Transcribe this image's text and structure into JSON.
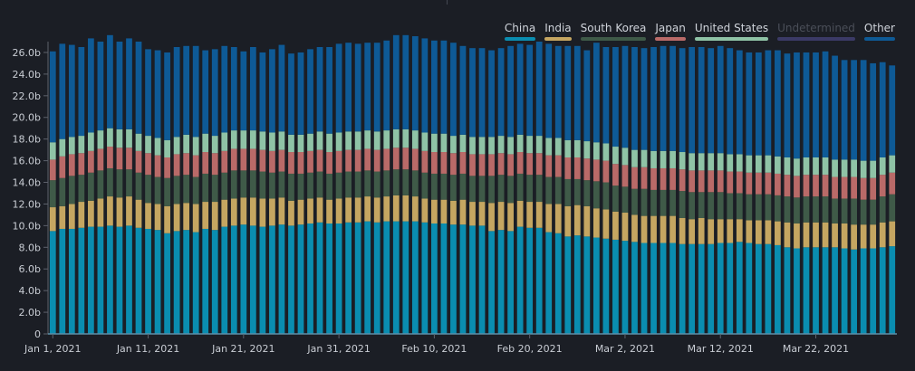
{
  "chart_data": {
    "type": "bar",
    "stacked": true,
    "title": "",
    "xlabel": "",
    "ylabel": "",
    "ylim": [
      0,
      27
    ],
    "ytick_labels": [
      "0",
      "2.0b",
      "4.0b",
      "6.0b",
      "8.0b",
      "10.0b",
      "12.0b",
      "14.0b",
      "16.0b",
      "18.0b",
      "20.0b",
      "22.0b",
      "24.0b",
      "26.0b"
    ],
    "ytick_values": [
      0,
      2,
      4,
      6,
      8,
      10,
      12,
      14,
      16,
      18,
      20,
      22,
      24,
      26
    ],
    "xtick_labels": [
      "Jan 1, 2021",
      "Jan 11, 2021",
      "Jan 21, 2021",
      "Jan 31, 2021",
      "Feb 10, 2021",
      "Feb 20, 2021",
      "Mar 2, 2021",
      "Mar 12, 2021",
      "Mar 22, 2021"
    ],
    "xtick_indices": [
      0,
      10,
      20,
      30,
      40,
      50,
      60,
      70,
      80
    ],
    "legend_position": "top-right",
    "categories": [
      "Jan 1",
      "Jan 2",
      "Jan 3",
      "Jan 4",
      "Jan 5",
      "Jan 6",
      "Jan 7",
      "Jan 8",
      "Jan 9",
      "Jan 10",
      "Jan 11",
      "Jan 12",
      "Jan 13",
      "Jan 14",
      "Jan 15",
      "Jan 16",
      "Jan 17",
      "Jan 18",
      "Jan 19",
      "Jan 20",
      "Jan 21",
      "Jan 22",
      "Jan 23",
      "Jan 24",
      "Jan 25",
      "Jan 26",
      "Jan 27",
      "Jan 28",
      "Jan 29",
      "Jan 30",
      "Jan 31",
      "Feb 1",
      "Feb 2",
      "Feb 3",
      "Feb 4",
      "Feb 5",
      "Feb 6",
      "Feb 7",
      "Feb 8",
      "Feb 9",
      "Feb 10",
      "Feb 11",
      "Feb 12",
      "Feb 13",
      "Feb 14",
      "Feb 15",
      "Feb 16",
      "Feb 17",
      "Feb 18",
      "Feb 19",
      "Feb 20",
      "Feb 21",
      "Feb 22",
      "Feb 23",
      "Feb 24",
      "Feb 25",
      "Feb 26",
      "Feb 27",
      "Feb 28",
      "Mar 1",
      "Mar 2",
      "Mar 3",
      "Mar 4",
      "Mar 5",
      "Mar 6",
      "Mar 7",
      "Mar 8",
      "Mar 9",
      "Mar 10",
      "Mar 11",
      "Mar 12",
      "Mar 13",
      "Mar 14",
      "Mar 15",
      "Mar 16",
      "Mar 17",
      "Mar 18",
      "Mar 19",
      "Mar 20",
      "Mar 21",
      "Mar 22",
      "Mar 23",
      "Mar 24",
      "Mar 25",
      "Mar 26",
      "Mar 27",
      "Mar 28",
      "Mar 29",
      "Mar 30"
    ],
    "series": [
      {
        "name": "China",
        "color": "#0a8db0",
        "values": [
          9.5,
          9.7,
          9.7,
          9.8,
          9.9,
          9.9,
          10.0,
          9.9,
          10.0,
          9.8,
          9.7,
          9.6,
          9.3,
          9.5,
          9.6,
          9.4,
          9.7,
          9.6,
          9.9,
          10.0,
          10.1,
          10.0,
          9.9,
          10.0,
          10.1,
          10.0,
          10.1,
          10.2,
          10.3,
          10.2,
          10.2,
          10.3,
          10.3,
          10.4,
          10.3,
          10.4,
          10.4,
          10.4,
          10.4,
          10.3,
          10.2,
          10.2,
          10.1,
          10.1,
          10.0,
          10.0,
          9.5,
          9.6,
          9.5,
          9.9,
          9.8,
          9.8,
          9.4,
          9.3,
          9.0,
          9.1,
          9.0,
          8.9,
          8.8,
          8.7,
          8.6,
          8.5,
          8.4,
          8.4,
          8.4,
          8.4,
          8.3,
          8.3,
          8.3,
          8.3,
          8.4,
          8.4,
          8.5,
          8.4,
          8.3,
          8.3,
          8.2,
          8.0,
          7.9,
          8.0,
          8.0,
          8.0,
          8.0,
          7.9,
          7.8,
          7.9,
          7.9,
          8.0,
          8.1
        ]
      },
      {
        "name": "India",
        "color": "#c5a661",
        "values": [
          2.2,
          2.1,
          2.3,
          2.4,
          2.4,
          2.6,
          2.7,
          2.7,
          2.7,
          2.6,
          2.4,
          2.4,
          2.5,
          2.5,
          2.5,
          2.6,
          2.5,
          2.6,
          2.5,
          2.5,
          2.5,
          2.6,
          2.6,
          2.5,
          2.5,
          2.3,
          2.3,
          2.3,
          2.3,
          2.2,
          2.3,
          2.3,
          2.3,
          2.3,
          2.3,
          2.3,
          2.4,
          2.4,
          2.3,
          2.2,
          2.2,
          2.2,
          2.2,
          2.3,
          2.2,
          2.2,
          2.6,
          2.6,
          2.6,
          2.4,
          2.4,
          2.4,
          2.6,
          2.7,
          2.8,
          2.8,
          2.8,
          2.7,
          2.7,
          2.6,
          2.6,
          2.5,
          2.5,
          2.5,
          2.5,
          2.5,
          2.4,
          2.3,
          2.4,
          2.3,
          2.2,
          2.2,
          2.1,
          2.1,
          2.2,
          2.2,
          2.2,
          2.3,
          2.3,
          2.3,
          2.3,
          2.3,
          2.2,
          2.3,
          2.3,
          2.2,
          2.2,
          2.3,
          2.3
        ]
      },
      {
        "name": "South Korea",
        "color": "#3f5a48",
        "values": [
          2.5,
          2.6,
          2.6,
          2.5,
          2.6,
          2.6,
          2.6,
          2.6,
          2.5,
          2.5,
          2.6,
          2.5,
          2.6,
          2.6,
          2.6,
          2.5,
          2.6,
          2.5,
          2.5,
          2.6,
          2.5,
          2.5,
          2.5,
          2.4,
          2.4,
          2.5,
          2.4,
          2.4,
          2.4,
          2.4,
          2.4,
          2.4,
          2.4,
          2.4,
          2.4,
          2.4,
          2.4,
          2.4,
          2.4,
          2.4,
          2.4,
          2.4,
          2.4,
          2.4,
          2.4,
          2.4,
          2.5,
          2.5,
          2.5,
          2.5,
          2.5,
          2.5,
          2.5,
          2.5,
          2.5,
          2.4,
          2.4,
          2.5,
          2.5,
          2.4,
          2.4,
          2.4,
          2.5,
          2.4,
          2.4,
          2.4,
          2.5,
          2.5,
          2.4,
          2.5,
          2.5,
          2.4,
          2.4,
          2.4,
          2.4,
          2.4,
          2.4,
          2.4,
          2.4,
          2.4,
          2.4,
          2.4,
          2.3,
          2.3,
          2.4,
          2.3,
          2.3,
          2.4,
          2.5
        ]
      },
      {
        "name": "Japan",
        "color": "#b96a68",
        "values": [
          1.9,
          2.0,
          2.0,
          2.0,
          2.0,
          2.0,
          2.0,
          2.0,
          2.0,
          2.0,
          2.0,
          2.0,
          1.9,
          2.0,
          2.0,
          2.0,
          2.0,
          2.0,
          2.0,
          2.0,
          2.0,
          2.0,
          2.0,
          2.0,
          2.0,
          2.0,
          2.0,
          2.0,
          2.0,
          2.0,
          2.0,
          2.0,
          2.0,
          2.0,
          2.0,
          2.0,
          2.0,
          2.0,
          2.0,
          2.0,
          2.0,
          2.0,
          2.0,
          2.0,
          2.0,
          2.0,
          2.0,
          2.0,
          2.0,
          2.0,
          2.0,
          2.0,
          2.0,
          2.0,
          2.0,
          2.0,
          2.0,
          2.0,
          2.0,
          2.0,
          2.0,
          2.0,
          2.0,
          2.0,
          2.0,
          2.0,
          2.0,
          2.0,
          2.0,
          2.0,
          2.0,
          2.0,
          2.0,
          2.0,
          2.0,
          2.0,
          2.0,
          2.0,
          2.0,
          2.0,
          2.0,
          2.0,
          2.0,
          2.0,
          2.0,
          2.0,
          2.0,
          2.0,
          2.0
        ]
      },
      {
        "name": "United States",
        "color": "#8fc3a6",
        "values": [
          1.6,
          1.6,
          1.6,
          1.6,
          1.7,
          1.7,
          1.7,
          1.7,
          1.7,
          1.6,
          1.6,
          1.6,
          1.6,
          1.6,
          1.7,
          1.7,
          1.7,
          1.6,
          1.7,
          1.7,
          1.7,
          1.7,
          1.7,
          1.7,
          1.7,
          1.6,
          1.6,
          1.6,
          1.7,
          1.7,
          1.7,
          1.7,
          1.7,
          1.7,
          1.7,
          1.7,
          1.7,
          1.7,
          1.7,
          1.7,
          1.7,
          1.7,
          1.6,
          1.6,
          1.6,
          1.6,
          1.6,
          1.6,
          1.6,
          1.6,
          1.6,
          1.6,
          1.6,
          1.6,
          1.6,
          1.6,
          1.6,
          1.6,
          1.6,
          1.6,
          1.6,
          1.6,
          1.6,
          1.6,
          1.6,
          1.6,
          1.6,
          1.6,
          1.6,
          1.6,
          1.6,
          1.6,
          1.6,
          1.6,
          1.6,
          1.6,
          1.6,
          1.6,
          1.6,
          1.6,
          1.6,
          1.6,
          1.6,
          1.6,
          1.6,
          1.6,
          1.6,
          1.6,
          1.6
        ]
      },
      {
        "name": "Undetermined",
        "color": "#3b3a66",
        "disabled": true,
        "values": [
          0,
          0,
          0,
          0,
          0,
          0,
          0,
          0,
          0,
          0,
          0,
          0,
          0,
          0,
          0,
          0,
          0,
          0,
          0,
          0,
          0,
          0,
          0,
          0,
          0,
          0,
          0,
          0,
          0,
          0,
          0,
          0,
          0,
          0,
          0,
          0,
          0,
          0,
          0,
          0,
          0,
          0,
          0,
          0,
          0,
          0,
          0,
          0,
          0,
          0,
          0,
          0,
          0,
          0,
          0,
          0,
          0,
          0,
          0,
          0,
          0,
          0,
          0,
          0,
          0,
          0,
          0,
          0,
          0,
          0,
          0,
          0,
          0,
          0,
          0,
          0,
          0,
          0,
          0,
          0,
          0,
          0,
          0,
          0,
          0,
          0,
          0,
          0,
          0
        ]
      },
      {
        "name": "Other",
        "color": "#0e5a96",
        "values": [
          8.4,
          8.8,
          8.5,
          8.2,
          8.7,
          8.2,
          8.6,
          8.1,
          8.4,
          8.5,
          8.0,
          8.1,
          8.1,
          8.3,
          8.2,
          8.4,
          7.7,
          8.0,
          8.0,
          7.7,
          7.3,
          7.7,
          7.3,
          7.7,
          8.0,
          7.5,
          7.6,
          7.8,
          7.8,
          8.0,
          8.2,
          8.2,
          8.1,
          8.1,
          8.2,
          8.3,
          8.7,
          8.7,
          8.7,
          8.7,
          8.6,
          8.6,
          8.6,
          8.2,
          8.2,
          8.2,
          8.0,
          8.1,
          8.4,
          8.4,
          8.4,
          8.7,
          8.7,
          8.5,
          8.7,
          8.7,
          8.4,
          9.2,
          8.9,
          9.2,
          9.4,
          9.5,
          9.4,
          9.6,
          9.7,
          9.7,
          9.6,
          9.8,
          9.8,
          9.7,
          9.9,
          9.8,
          9.6,
          9.5,
          9.5,
          9.7,
          9.8,
          9.6,
          9.8,
          9.7,
          9.7,
          9.8,
          9.6,
          9.2,
          9.2,
          9.3,
          9.0,
          8.8,
          8.3
        ]
      }
    ]
  }
}
